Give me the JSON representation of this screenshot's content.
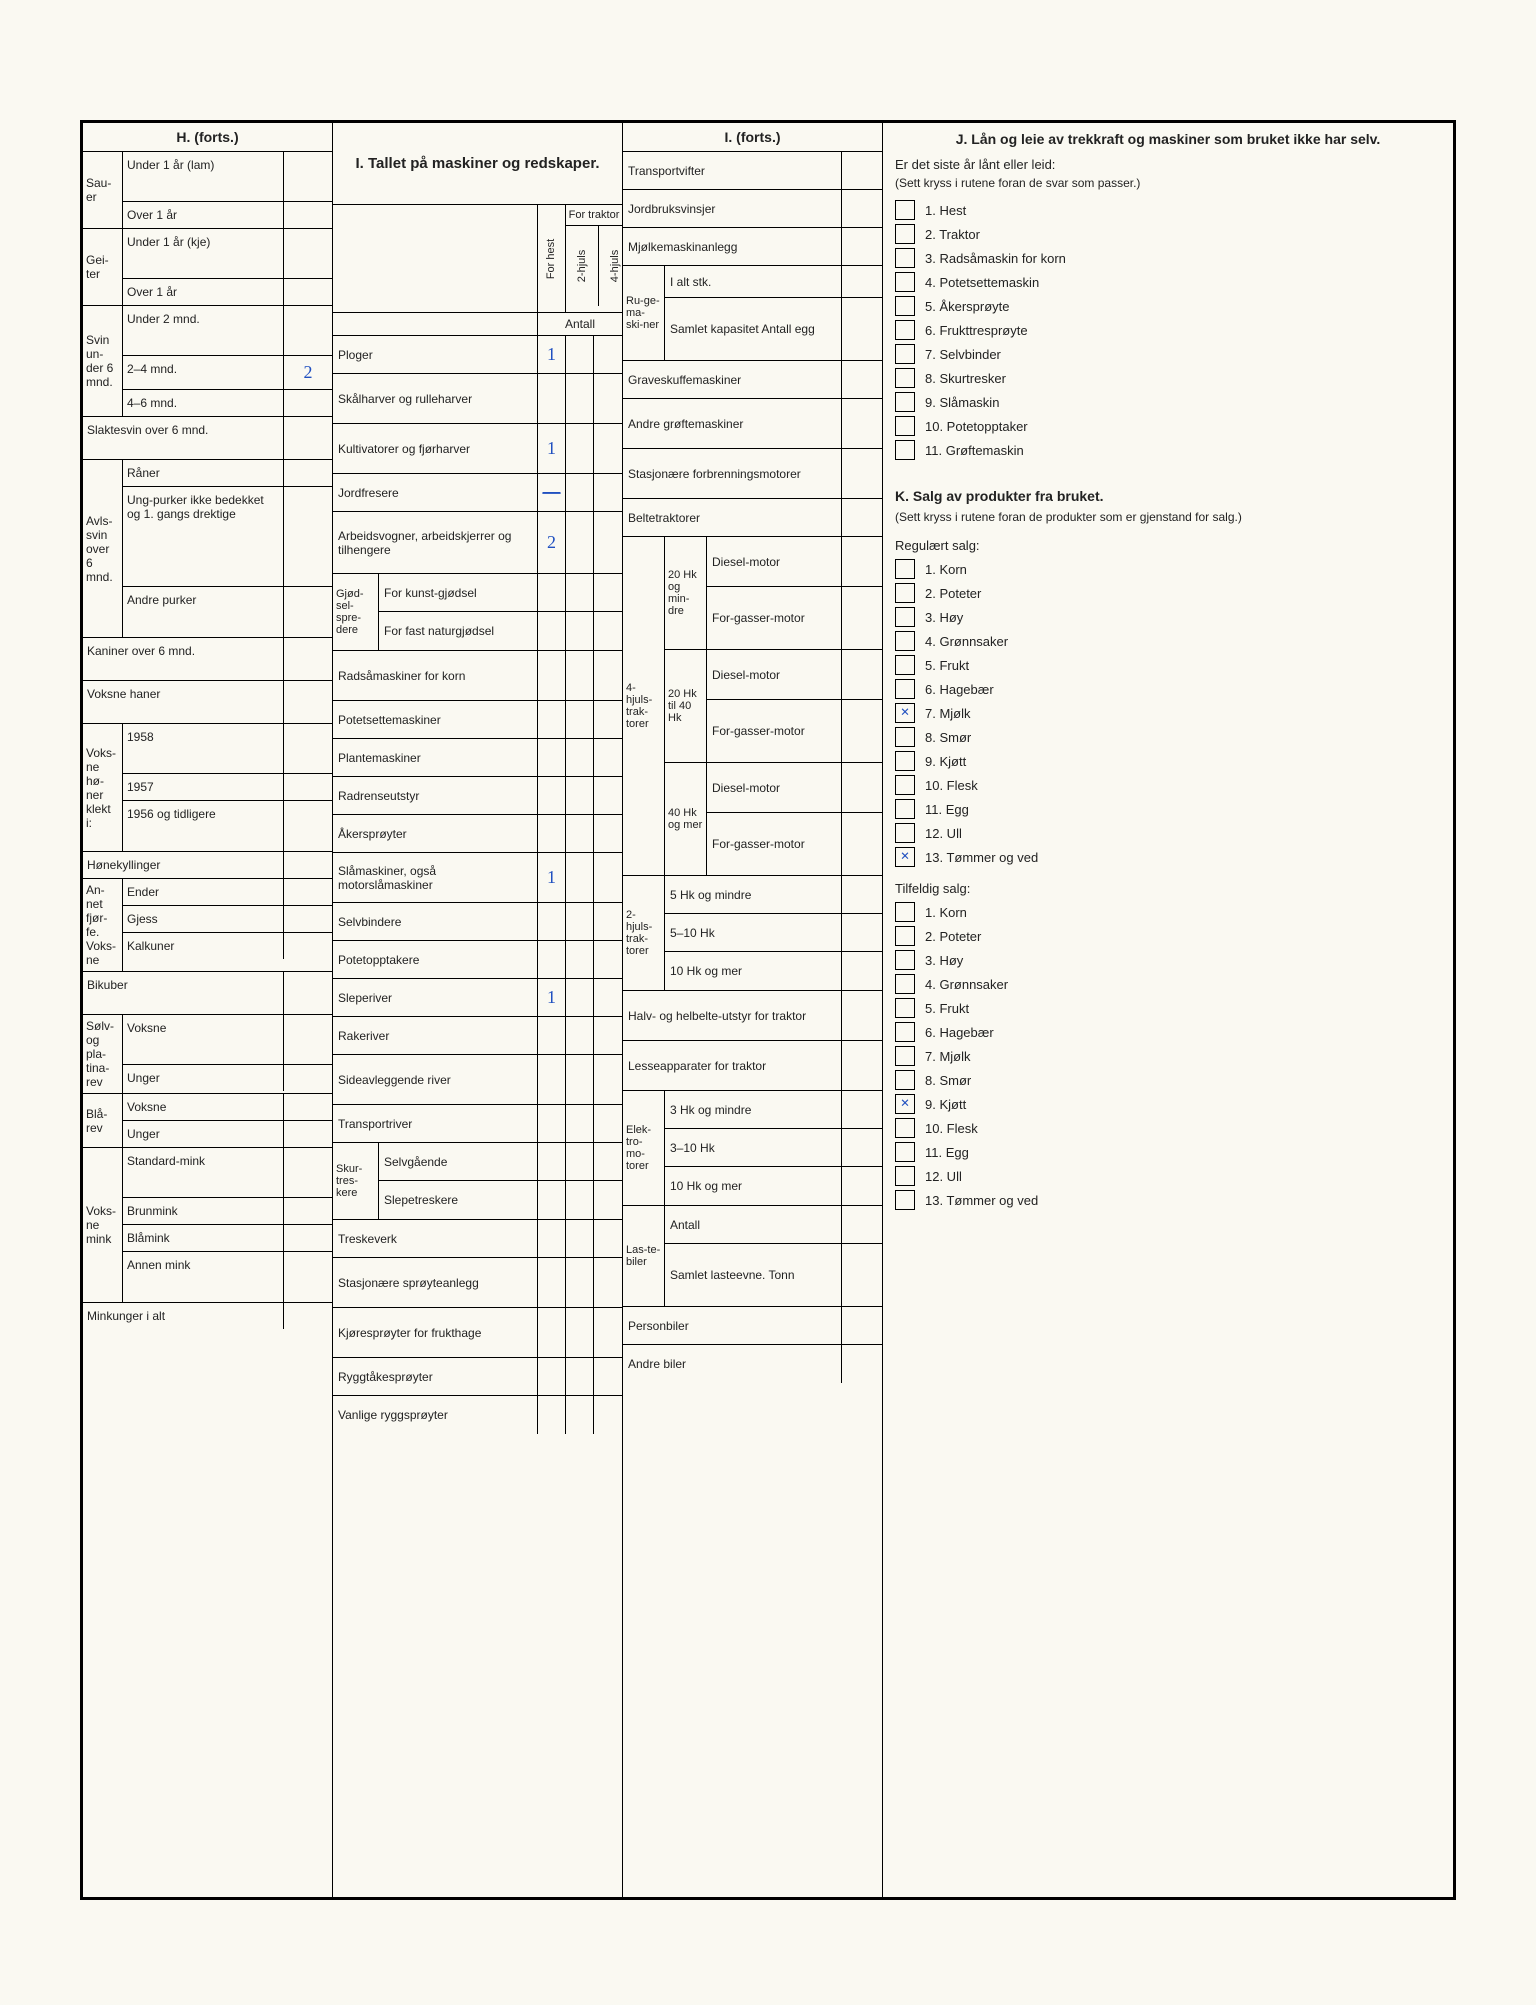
{
  "headers": {
    "H": "H. (forts.)",
    "I": "I. Tallet på maskiner og redskaper.",
    "Ic": "I. (forts.)",
    "J_title": "J. Lån og leie av trekkraft og maskiner som bruket ikke har selv.",
    "J_sub": "Er det siste år lånt eller leid:",
    "J_note": "(Sett kryss i rutene foran de svar som passer.)",
    "K_title": "K. Salg av produkter fra bruket.",
    "K_note": "(Sett kryss i rutene foran de produkter som er gjenstand for salg.)",
    "K_reg": "Regulært salg:",
    "K_tilf": "Tilfeldig salg:"
  },
  "I_head": {
    "forhest": "For hest",
    "traktor": "For traktor",
    "h2": "2-hjuls",
    "h4": "4-hjuls",
    "antall": "Antall"
  },
  "H": {
    "sauer": "Sau-er",
    "u1lam": "Under 1 år (lam)",
    "o1": "Over 1 år",
    "geiter": "Gei-ter",
    "u1kje": "Under 1 år (kje)",
    "svin": "Svin un-der 6 mnd.",
    "u2m": "Under 2 mnd.",
    "m24": "2–4 mnd.",
    "m46": "4–6 mnd.",
    "slakte": "Slaktesvin over 6 mnd.",
    "avls": "Avls-svin over 6 mnd.",
    "raner": "Råner",
    "ungpurk": "Ung-purker ikke bedekket og 1. gangs drektige",
    "andrep": "Andre purker",
    "kaniner": "Kaniner over 6 mnd.",
    "vhaner": "Voksne haner",
    "vhoner": "Voks-ne hø-ner klekt i:",
    "y58": "1958",
    "y57": "1957",
    "y56": "1956 og tidligere",
    "honekyll": "Hønekyllinger",
    "annet": "An-net fjør-fe. Voks-ne",
    "ender": "Ender",
    "gjess": "Gjess",
    "kalk": "Kalkuner",
    "bikuber": "Bikuber",
    "solvrev": "Sølv- og pla-tina-rev",
    "voksne": "Voksne",
    "unger": "Unger",
    "blarev": "Blå-rev",
    "vmink": "Voks-ne mink",
    "stdmink": "Standard-mink",
    "brunmink": "Brunmink",
    "blamink": "Blåmink",
    "annenmink": "Annen mink",
    "minkunger": "Minkunger i alt",
    "val_m24": "2"
  },
  "I_rows": {
    "ploger": "Ploger",
    "ploger_v": "1",
    "skal": "Skålharver og rulleharver",
    "kult": "Kultivatorer og fjørharver",
    "kult_v": "1",
    "jordf": "Jordfresere",
    "arbv": "Arbeidsvogner, arbeidskjerrer og tilhengere",
    "arbv_v": "2",
    "gjod": "Gjød-sel-spre-dere",
    "kunstg": "For kunst-gjødsel",
    "fastg": "For fast naturgjødsel",
    "radsa": "Radsåmaskiner for korn",
    "potset": "Potetsettemaskiner",
    "plante": "Plantemaskiner",
    "radrens": "Radrenseutstyr",
    "akerspr": "Åkersprøyter",
    "slamask": "Slåmaskiner, også motorslåmaskiner",
    "slamask_v": "1",
    "selvb": "Selvbindere",
    "potopp": "Potetopptakere",
    "sleper": "Sleperiver",
    "sleper_v": "1",
    "raker": "Rakeriver",
    "sideavl": "Sideavleggende river",
    "transpr": "Transportriver",
    "skurtr": "Skur-tres-kere",
    "selvg": "Selvgående",
    "slepetr": "Slepetreskere",
    "treskev": "Treskeverk",
    "stasjspr": "Stasjonære sprøyteanlegg",
    "kjorespr": "Kjøresprøyter for frukthage",
    "ryggtak": "Ryggtåkesprøyter",
    "vanligrygg": "Vanlige ryggsprøyter"
  },
  "Ic_rows": {
    "transpv": "Transportvifter",
    "jordbv": "Jordbruksvinsjer",
    "mjolkem": "Mjølkemaskinanlegg",
    "ruge": "Ru-ge-ma-ski-ner",
    "ialt": "I alt stk.",
    "samlet": "Samlet kapasitet Antall egg",
    "graves": "Graveskuffemaskiner",
    "andregr": "Andre grøftemaskiner",
    "stasjfor": "Stasjonære forbrenningsmotorer",
    "beltetr": "Beltetraktorer",
    "hk20m": "20 Hk og min-dre",
    "diesel": "Diesel-motor",
    "forgass": "For-gasser-motor",
    "h4trak": "4-hjuls-trak-torer",
    "hk2040": "20 Hk til 40 Hk",
    "hk40m": "40 Hk og mer",
    "h2trak": "2-hjuls-trak-torer",
    "hk5m": "5 Hk og mindre",
    "hk510": "5–10 Hk",
    "hk10m": "10 Hk og mer",
    "halvhel": "Halv- og helbelte-utstyr for traktor",
    "lesseapp": "Lesseapparater for traktor",
    "elektro": "Elek-tro-mo-torer",
    "hk3m": "3 Hk og mindre",
    "hk310": "3–10 Hk",
    "lasteb": "Las-te-biler",
    "antall": "Antall",
    "samletl": "Samlet lasteevne. Tonn",
    "personb": "Personbiler",
    "andreb": "Andre biler"
  },
  "J_items": [
    "1. Hest",
    "2. Traktor",
    "3. Radsåmaskin for korn",
    "4. Potetsettemaskin",
    "5. Åkersprøyte",
    "6. Frukttresprøyte",
    "7. Selvbinder",
    "8. Skurtresker",
    "9. Slåmaskin",
    "10. Potetopptaker",
    "11. Grøftemaskin"
  ],
  "K_reg_items": [
    "1. Korn",
    "2. Poteter",
    "3. Høy",
    "4. Grønnsaker",
    "5. Frukt",
    "6. Hagebær",
    "7. Mjølk",
    "8. Smør",
    "9. Kjøtt",
    "10. Flesk",
    "11. Egg",
    "12. Ull",
    "13. Tømmer og ved"
  ],
  "K_reg_marks": {
    "6": "×",
    "12": "×"
  },
  "K_tilf_items": [
    "1. Korn",
    "2. Poteter",
    "3. Høy",
    "4. Grønnsaker",
    "5. Frukt",
    "6. Hagebær",
    "7. Mjølk",
    "8. Smør",
    "9. Kjøtt",
    "10. Flesk",
    "11. Egg",
    "12. Ull",
    "13. Tømmer og ved"
  ],
  "K_tilf_marks": {
    "8": "×"
  }
}
